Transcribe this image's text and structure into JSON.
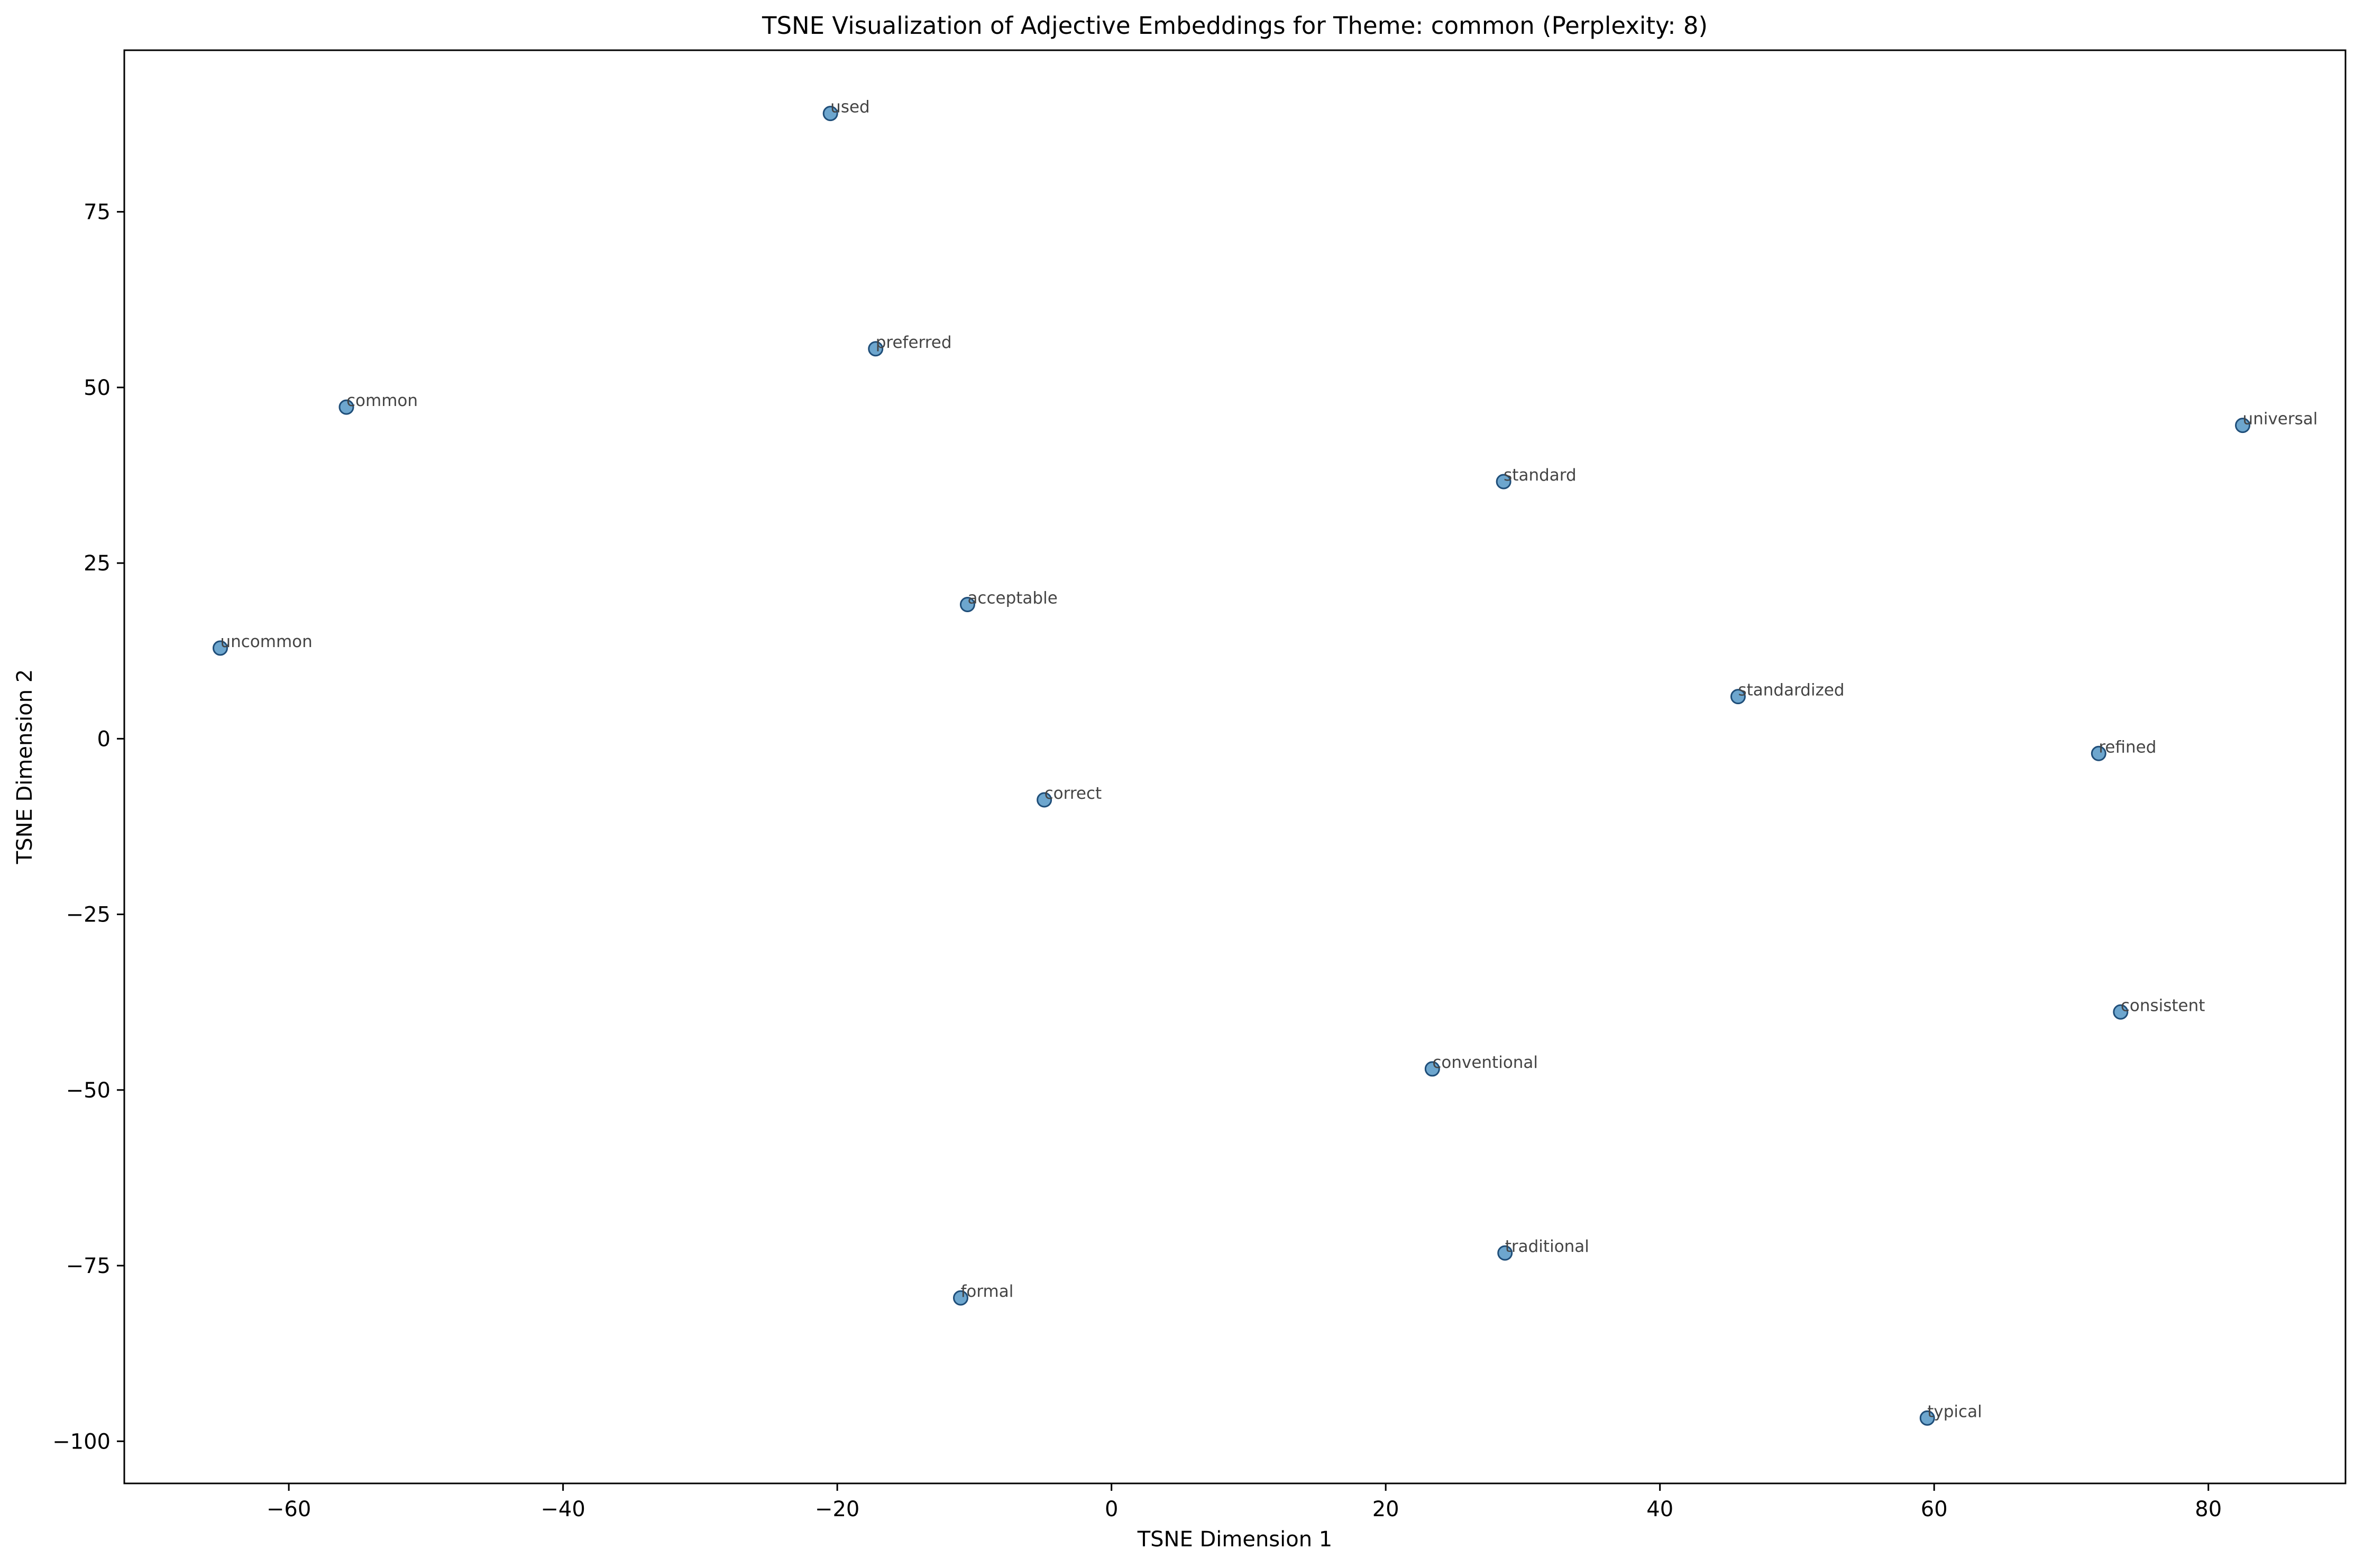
{
  "chart_data": {
    "type": "scatter",
    "title": "TSNE Visualization of Adjective Embeddings for Theme: common (Perplexity: 8)",
    "xlabel": "TSNE Dimension 1",
    "ylabel": "TSNE Dimension 2",
    "xlim": [
      -72,
      90
    ],
    "ylim": [
      -106,
      98
    ],
    "xticks": [
      -60,
      -40,
      -20,
      0,
      20,
      40,
      60,
      80
    ],
    "yticks": [
      -100,
      -75,
      -50,
      -25,
      0,
      25,
      50,
      75
    ],
    "xtick_labels": [
      "−60",
      "−40",
      "−20",
      "0",
      "20",
      "40",
      "60",
      "80"
    ],
    "ytick_labels": [
      "−100",
      "−75",
      "−50",
      "−25",
      "0",
      "25",
      "50",
      "75"
    ],
    "grid": false,
    "color": "#1f77b4",
    "points": [
      {
        "label": "used",
        "x": -20.5,
        "y": 89.0
      },
      {
        "label": "preferred",
        "x": -17.2,
        "y": 55.5
      },
      {
        "label": "common",
        "x": -55.8,
        "y": 47.2
      },
      {
        "label": "universal",
        "x": 82.5,
        "y": 44.6
      },
      {
        "label": "standard",
        "x": 28.6,
        "y": 36.6
      },
      {
        "label": "acceptable",
        "x": -10.5,
        "y": 19.1
      },
      {
        "label": "uncommon",
        "x": -65.0,
        "y": 12.9
      },
      {
        "label": "standardized",
        "x": 45.7,
        "y": 6.0
      },
      {
        "label": "refined",
        "x": 72.0,
        "y": -2.1
      },
      {
        "label": "correct",
        "x": -4.9,
        "y": -8.7
      },
      {
        "label": "consistent",
        "x": 73.6,
        "y": -38.9
      },
      {
        "label": "conventional",
        "x": 23.4,
        "y": -47.0
      },
      {
        "label": "traditional",
        "x": 28.7,
        "y": -73.2
      },
      {
        "label": "formal",
        "x": -11.0,
        "y": -79.6
      },
      {
        "label": "typical",
        "x": 59.5,
        "y": -96.7
      }
    ]
  }
}
